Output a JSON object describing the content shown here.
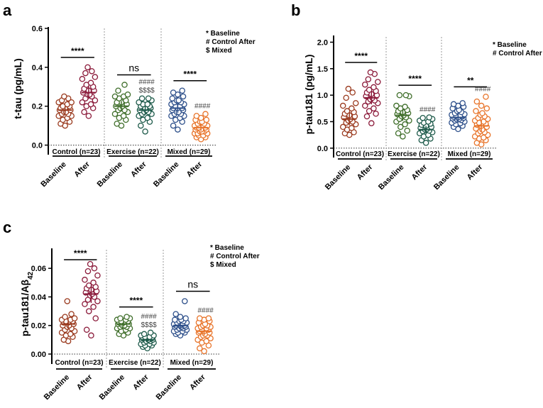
{
  "colors": {
    "control": "#8b1a3a",
    "exercise": "#3f6e2a",
    "exercise_after": "#1d5a4a",
    "mixed_baseline": "#2d4f8a",
    "mixed_after": "#e8742a",
    "control_baseline": "#9a3a1e"
  },
  "chart_data": [
    {
      "id": "a",
      "panel_letter": "a",
      "type": "scatter",
      "ylabel": "t-tau (pg/mL)",
      "ylim": [
        -0.02,
        0.6
      ],
      "yticks": [
        "0.0",
        "0.2",
        "0.4",
        "0.6"
      ],
      "ytick_values": [
        0.0,
        0.2,
        0.4,
        0.6
      ],
      "legend": [
        "* Baseline",
        "# Control After",
        "$  Mixed"
      ],
      "groups": [
        {
          "label": "Control (n=23)",
          "categories": [
            "Baseline",
            "After"
          ],
          "series": [
            {
              "name": "Baseline",
              "color_key": "control_baseline",
              "mean": 0.18,
              "values": [
                0.1,
                0.11,
                0.12,
                0.13,
                0.14,
                0.15,
                0.15,
                0.16,
                0.16,
                0.17,
                0.17,
                0.18,
                0.18,
                0.19,
                0.19,
                0.2,
                0.2,
                0.21,
                0.22,
                0.22,
                0.23,
                0.24,
                0.25
              ]
            },
            {
              "name": "After",
              "color_key": "control",
              "mean": 0.27,
              "values": [
                0.15,
                0.17,
                0.19,
                0.2,
                0.21,
                0.22,
                0.23,
                0.24,
                0.25,
                0.26,
                0.26,
                0.27,
                0.28,
                0.28,
                0.29,
                0.3,
                0.31,
                0.32,
                0.34,
                0.35,
                0.37,
                0.38,
                0.4
              ]
            }
          ],
          "sig": "****",
          "annotations": []
        },
        {
          "label": "Exercise (n=22)",
          "categories": [
            "Baseline",
            "After"
          ],
          "series": [
            {
              "name": "Baseline",
              "color_key": "exercise",
              "mean": 0.2,
              "values": [
                0.1,
                0.11,
                0.13,
                0.14,
                0.15,
                0.16,
                0.17,
                0.18,
                0.18,
                0.19,
                0.2,
                0.2,
                0.21,
                0.22,
                0.22,
                0.23,
                0.24,
                0.25,
                0.25,
                0.26,
                0.28,
                0.31
              ]
            },
            {
              "name": "After",
              "color_key": "exercise_after",
              "mean": 0.18,
              "values": [
                0.07,
                0.1,
                0.12,
                0.13,
                0.14,
                0.15,
                0.16,
                0.16,
                0.17,
                0.17,
                0.18,
                0.18,
                0.19,
                0.19,
                0.2,
                0.2,
                0.21,
                0.21,
                0.22,
                0.23,
                0.24,
                0.24
              ]
            }
          ],
          "sig": "ns",
          "annotations": [
            "####",
            "$$$$"
          ]
        },
        {
          "label": "Mixed (n=29)",
          "categories": [
            "Baseline",
            "After"
          ],
          "series": [
            {
              "name": "Baseline",
              "color_key": "mixed_baseline",
              "mean": 0.19,
              "values": [
                0.08,
                0.1,
                0.12,
                0.13,
                0.14,
                0.15,
                0.15,
                0.16,
                0.16,
                0.17,
                0.17,
                0.18,
                0.18,
                0.19,
                0.19,
                0.19,
                0.2,
                0.2,
                0.21,
                0.21,
                0.22,
                0.22,
                0.23,
                0.23,
                0.24,
                0.25,
                0.26,
                0.27,
                0.28
              ]
            },
            {
              "name": "After",
              "color_key": "mixed_after",
              "mean": 0.09,
              "values": [
                0.03,
                0.04,
                0.04,
                0.05,
                0.05,
                0.06,
                0.06,
                0.06,
                0.07,
                0.07,
                0.07,
                0.08,
                0.08,
                0.08,
                0.09,
                0.09,
                0.09,
                0.1,
                0.1,
                0.1,
                0.11,
                0.11,
                0.12,
                0.12,
                0.13,
                0.13,
                0.14,
                0.15,
                0.16
              ]
            }
          ],
          "sig": "****",
          "annotations": [
            "####"
          ]
        }
      ]
    },
    {
      "id": "b",
      "panel_letter": "b",
      "type": "scatter",
      "ylabel": "p-tau181 (pg/mL)",
      "ylim": [
        -0.07,
        2.1
      ],
      "yticks": [
        "0.0",
        "0.5",
        "1.0",
        "1.5",
        "2.0"
      ],
      "ytick_values": [
        0.0,
        0.5,
        1.0,
        1.5,
        2.0
      ],
      "legend": [
        "* Baseline",
        "# Control After"
      ],
      "groups": [
        {
          "label": "Control (n=23)",
          "categories": [
            "Baseline",
            "After"
          ],
          "series": [
            {
              "name": "Baseline",
              "color_key": "control_baseline",
              "mean": 0.55,
              "values": [
                0.25,
                0.28,
                0.3,
                0.35,
                0.38,
                0.4,
                0.45,
                0.48,
                0.5,
                0.52,
                0.55,
                0.58,
                0.6,
                0.62,
                0.65,
                0.68,
                0.7,
                0.75,
                0.8,
                0.85,
                0.95,
                1.05,
                1.12
              ]
            },
            {
              "name": "After",
              "color_key": "control",
              "mean": 0.95,
              "values": [
                0.47,
                0.6,
                0.65,
                0.7,
                0.75,
                0.8,
                0.85,
                0.88,
                0.9,
                0.92,
                0.95,
                0.98,
                1.0,
                1.02,
                1.05,
                1.08,
                1.1,
                1.15,
                1.2,
                1.25,
                1.3,
                1.4,
                1.43
              ]
            }
          ],
          "sig": "****",
          "annotations": []
        },
        {
          "label": "Exercise (n=22)",
          "categories": [
            "Baseline",
            "After"
          ],
          "series": [
            {
              "name": "Baseline",
              "color_key": "exercise",
              "mean": 0.62,
              "values": [
                0.22,
                0.28,
                0.33,
                0.4,
                0.45,
                0.5,
                0.52,
                0.55,
                0.58,
                0.6,
                0.62,
                0.64,
                0.66,
                0.68,
                0.7,
                0.72,
                0.75,
                0.78,
                0.8,
                0.98,
                1.0,
                1.0
              ]
            },
            {
              "name": "After",
              "color_key": "exercise_after",
              "mean": 0.35,
              "values": [
                0.1,
                0.15,
                0.18,
                0.22,
                0.25,
                0.28,
                0.3,
                0.32,
                0.33,
                0.35,
                0.36,
                0.38,
                0.4,
                0.42,
                0.44,
                0.46,
                0.48,
                0.5,
                0.52,
                0.55,
                0.57,
                0.58
              ]
            }
          ],
          "sig": "****",
          "annotations": [
            "####"
          ]
        },
        {
          "label": "Mixed (n=29)",
          "categories": [
            "Baseline",
            "After"
          ],
          "series": [
            {
              "name": "Baseline",
              "color_key": "mixed_baseline",
              "mean": 0.58,
              "values": [
                0.36,
                0.4,
                0.42,
                0.45,
                0.47,
                0.48,
                0.5,
                0.52,
                0.53,
                0.54,
                0.55,
                0.56,
                0.57,
                0.58,
                0.59,
                0.6,
                0.61,
                0.62,
                0.63,
                0.64,
                0.66,
                0.68,
                0.7,
                0.72,
                0.75,
                0.78,
                0.8,
                0.83,
                0.85
              ]
            },
            {
              "name": "After",
              "color_key": "mixed_after",
              "mean": 0.42,
              "values": [
                0.07,
                0.1,
                0.15,
                0.18,
                0.2,
                0.22,
                0.25,
                0.28,
                0.3,
                0.32,
                0.35,
                0.37,
                0.4,
                0.42,
                0.44,
                0.46,
                0.48,
                0.5,
                0.52,
                0.55,
                0.57,
                0.6,
                0.63,
                0.66,
                0.7,
                0.75,
                0.8,
                0.88,
                0.97
              ]
            }
          ],
          "sig": "**",
          "annotations": [
            "####"
          ]
        }
      ]
    },
    {
      "id": "c",
      "panel_letter": "c",
      "type": "scatter",
      "ylabel": "p-tau181/Aβ42",
      "ylim": [
        -0.003,
        0.073
      ],
      "yticks": [
        "0.00",
        "0.02",
        "0.04",
        "0.06"
      ],
      "ytick_values": [
        0.0,
        0.02,
        0.04,
        0.06
      ],
      "legend": [
        "* Baseline",
        "# Control After",
        "$ Mixed"
      ],
      "groups": [
        {
          "label": "Control  (n=23)",
          "categories": [
            "Baseline",
            "After"
          ],
          "series": [
            {
              "name": "Baseline",
              "color_key": "control_baseline",
              "mean": 0.021,
              "values": [
                0.009,
                0.01,
                0.012,
                0.013,
                0.014,
                0.015,
                0.016,
                0.017,
                0.018,
                0.019,
                0.02,
                0.02,
                0.021,
                0.022,
                0.022,
                0.023,
                0.023,
                0.024,
                0.024,
                0.025,
                0.026,
                0.028,
                0.037
              ]
            },
            {
              "name": "After",
              "color_key": "control",
              "mean": 0.042,
              "values": [
                0.013,
                0.017,
                0.025,
                0.03,
                0.033,
                0.035,
                0.037,
                0.038,
                0.04,
                0.041,
                0.042,
                0.043,
                0.044,
                0.045,
                0.046,
                0.047,
                0.048,
                0.05,
                0.052,
                0.055,
                0.058,
                0.06,
                0.063
              ]
            }
          ],
          "sig": "****",
          "annotations": []
        },
        {
          "label": "Exercise (n=22)",
          "categories": [
            "Baseline",
            "After"
          ],
          "series": [
            {
              "name": "Baseline",
              "color_key": "exercise",
              "mean": 0.021,
              "values": [
                0.013,
                0.014,
                0.015,
                0.016,
                0.017,
                0.018,
                0.018,
                0.019,
                0.019,
                0.02,
                0.02,
                0.021,
                0.021,
                0.022,
                0.022,
                0.023,
                0.023,
                0.024,
                0.024,
                0.025,
                0.025,
                0.026
              ]
            },
            {
              "name": "After",
              "color_key": "exercise_after",
              "mean": 0.01,
              "values": [
                0.004,
                0.005,
                0.006,
                0.006,
                0.007,
                0.007,
                0.008,
                0.008,
                0.009,
                0.009,
                0.01,
                0.01,
                0.01,
                0.011,
                0.011,
                0.011,
                0.012,
                0.012,
                0.013,
                0.013,
                0.014,
                0.015
              ]
            }
          ],
          "sig": "****",
          "annotations": [
            "####",
            "$$$$"
          ]
        },
        {
          "label": "Mixed  (n=29)",
          "categories": [
            "Baseline",
            "After"
          ],
          "series": [
            {
              "name": "Baseline",
              "color_key": "mixed_baseline",
              "mean": 0.02,
              "values": [
                0.013,
                0.014,
                0.015,
                0.015,
                0.016,
                0.016,
                0.017,
                0.017,
                0.018,
                0.018,
                0.019,
                0.019,
                0.019,
                0.02,
                0.02,
                0.02,
                0.021,
                0.021,
                0.021,
                0.022,
                0.022,
                0.023,
                0.023,
                0.024,
                0.024,
                0.025,
                0.026,
                0.028,
                0.037
              ]
            },
            {
              "name": "After",
              "color_key": "mixed_after",
              "mean": 0.016,
              "values": [
                0.002,
                0.004,
                0.006,
                0.008,
                0.009,
                0.01,
                0.011,
                0.012,
                0.013,
                0.013,
                0.014,
                0.015,
                0.015,
                0.016,
                0.016,
                0.017,
                0.017,
                0.018,
                0.018,
                0.019,
                0.019,
                0.02,
                0.02,
                0.021,
                0.022,
                0.023,
                0.024,
                0.025,
                0.025
              ]
            }
          ],
          "sig": "ns",
          "annotations": [
            "####"
          ]
        }
      ]
    }
  ]
}
